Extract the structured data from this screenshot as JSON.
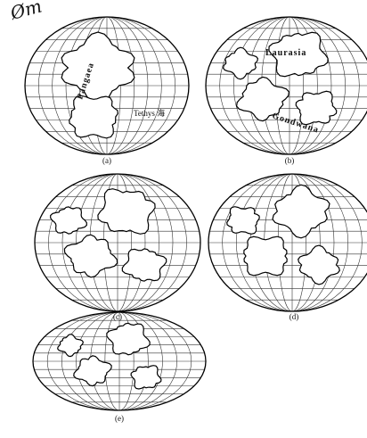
{
  "handwriting": "Øm",
  "panels": [
    {
      "label": "(a)",
      "texts": [
        "Pangaea",
        "Tethys 海"
      ]
    },
    {
      "label": "(b)",
      "texts": [
        "Laurasia",
        "Gondwana"
      ]
    },
    {
      "label": "(c)",
      "texts": []
    },
    {
      "label": "(d)",
      "texts": []
    },
    {
      "label": "(e)",
      "texts": []
    }
  ]
}
